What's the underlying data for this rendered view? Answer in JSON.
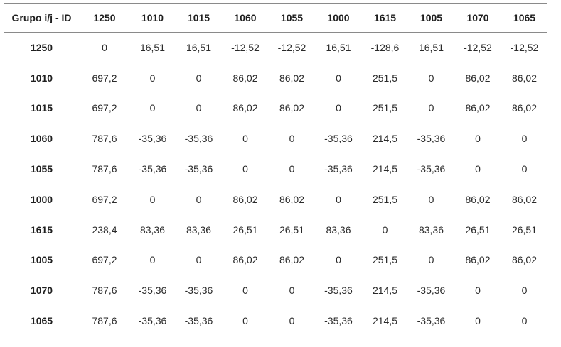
{
  "table": {
    "header_label": "Grupo i/j - ID",
    "columns": [
      "1250",
      "1010",
      "1015",
      "1060",
      "1055",
      "1000",
      "1615",
      "1005",
      "1070",
      "1065"
    ],
    "rows": [
      {
        "id": "1250",
        "values": [
          "0",
          "16,51",
          "16,51",
          "-12,52",
          "-12,52",
          "16,51",
          "-128,6",
          "16,51",
          "-12,52",
          "-12,52"
        ]
      },
      {
        "id": "1010",
        "values": [
          "697,2",
          "0",
          "0",
          "86,02",
          "86,02",
          "0",
          "251,5",
          "0",
          "86,02",
          "86,02"
        ]
      },
      {
        "id": "1015",
        "values": [
          "697,2",
          "0",
          "0",
          "86,02",
          "86,02",
          "0",
          "251,5",
          "0",
          "86,02",
          "86,02"
        ]
      },
      {
        "id": "1060",
        "values": [
          "787,6",
          "-35,36",
          "-35,36",
          "0",
          "0",
          "-35,36",
          "214,5",
          "-35,36",
          "0",
          "0"
        ]
      },
      {
        "id": "1055",
        "values": [
          "787,6",
          "-35,36",
          "-35,36",
          "0",
          "0",
          "-35,36",
          "214,5",
          "-35,36",
          "0",
          "0"
        ]
      },
      {
        "id": "1000",
        "values": [
          "697,2",
          "0",
          "0",
          "86,02",
          "86,02",
          "0",
          "251,5",
          "0",
          "86,02",
          "86,02"
        ]
      },
      {
        "id": "1615",
        "values": [
          "238,4",
          "83,36",
          "83,36",
          "26,51",
          "26,51",
          "83,36",
          "0",
          "83,36",
          "26,51",
          "26,51"
        ]
      },
      {
        "id": "1005",
        "values": [
          "697,2",
          "0",
          "0",
          "86,02",
          "86,02",
          "0",
          "251,5",
          "0",
          "86,02",
          "86,02"
        ]
      },
      {
        "id": "1070",
        "values": [
          "787,6",
          "-35,36",
          "-35,36",
          "0",
          "0",
          "-35,36",
          "214,5",
          "-35,36",
          "0",
          "0"
        ]
      },
      {
        "id": "1065",
        "values": [
          "787,6",
          "-35,36",
          "-35,36",
          "0",
          "0",
          "-35,36",
          "214,5",
          "-35,36",
          "0",
          "0"
        ]
      }
    ]
  }
}
